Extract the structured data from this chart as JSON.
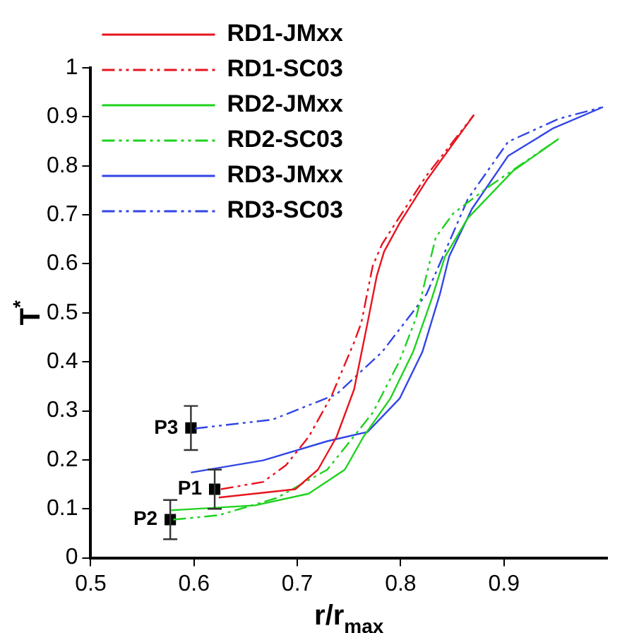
{
  "chart_data": {
    "type": "line",
    "xlabel": "r/r$_{max}$",
    "ylabel": "T$^{*}$",
    "xlim": [
      0.5,
      1
    ],
    "xticks": [
      0.5,
      0.6,
      0.7,
      0.8,
      0.9
    ],
    "ylim": [
      0,
      1
    ],
    "yticks": [
      0,
      0.1,
      0.2,
      0.3,
      0.4,
      0.5,
      0.6,
      0.7,
      0.8,
      0.9,
      1
    ],
    "grid": false,
    "legend": "top left",
    "marker": "none",
    "series": [
      {
        "name": "RD1-JMxx",
        "color": "#e8141e",
        "line_style": "solid",
        "x": [
          0.624,
          0.698,
          0.72,
          0.738,
          0.755,
          0.768,
          0.777,
          0.784,
          0.799,
          0.825,
          0.871
        ],
        "values": [
          0.123,
          0.14,
          0.18,
          0.247,
          0.344,
          0.48,
          0.576,
          0.625,
          0.683,
          0.77,
          0.904
        ]
      },
      {
        "name": "RD1-SC03",
        "color": "#e8141e",
        "line_style": "dashed",
        "x": [
          0.626,
          0.667,
          0.689,
          0.711,
          0.733,
          0.755,
          0.762,
          0.773,
          0.782,
          0.795,
          0.825,
          0.871
        ],
        "values": [
          0.14,
          0.155,
          0.189,
          0.247,
          0.33,
          0.44,
          0.48,
          0.596,
          0.64,
          0.683,
          0.78,
          0.904
        ]
      },
      {
        "name": "RD2-JMxx",
        "color": "#1ed21e",
        "line_style": "solid",
        "x": [
          0.578,
          0.659,
          0.711,
          0.746,
          0.764,
          0.79,
          0.812,
          0.83,
          0.843,
          0.865,
          0.909,
          0.953
        ],
        "values": [
          0.097,
          0.107,
          0.131,
          0.18,
          0.247,
          0.325,
          0.42,
          0.528,
          0.615,
          0.693,
          0.79,
          0.855
        ]
      },
      {
        "name": "RD2-SC03",
        "color": "#1ed21e",
        "line_style": "dashed",
        "x": [
          0.58,
          0.624,
          0.68,
          0.729,
          0.773,
          0.799,
          0.815,
          0.834,
          0.851,
          0.887,
          0.953
        ],
        "values": [
          0.078,
          0.087,
          0.122,
          0.18,
          0.296,
          0.402,
          0.49,
          0.654,
          0.703,
          0.76,
          0.855
        ]
      },
      {
        "name": "RD3-JMxx",
        "color": "#3246e6",
        "line_style": "solid",
        "x": [
          0.597,
          0.667,
          0.729,
          0.768,
          0.799,
          0.821,
          0.838,
          0.847,
          0.869,
          0.904,
          0.948,
          0.996
        ],
        "values": [
          0.174,
          0.199,
          0.238,
          0.257,
          0.325,
          0.42,
          0.538,
          0.615,
          0.712,
          0.82,
          0.877,
          0.92
        ]
      },
      {
        "name": "RD3-SC03",
        "color": "#3246e6",
        "line_style": "dashed",
        "x": [
          0.601,
          0.676,
          0.738,
          0.782,
          0.825,
          0.843,
          0.865,
          0.904,
          0.953,
          0.996
        ],
        "values": [
          0.264,
          0.282,
          0.334,
          0.42,
          0.538,
          0.625,
          0.732,
          0.849,
          0.896,
          0.92
        ]
      },
      {
        "type": "scatter",
        "color": "#000000",
        "marker": "square",
        "x": [
          0.62,
          0.577,
          0.597
        ],
        "values": [
          0.14,
          0.078,
          0.265
        ],
        "errors": [
          0.04,
          0.04,
          0.045
        ],
        "value_labels": [
          "P1",
          "P2",
          "P3"
        ]
      }
    ]
  }
}
